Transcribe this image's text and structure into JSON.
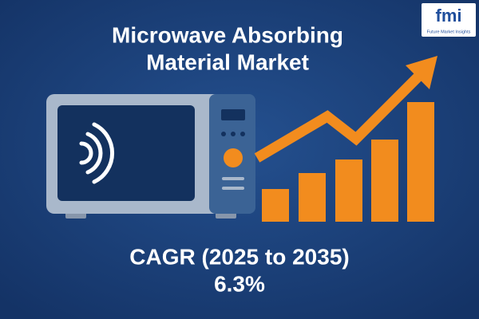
{
  "header": {
    "title_lines": [
      "Microwave Absorbing",
      "Material Market"
    ]
  },
  "highlight": {
    "label": "CAGR (2025 to 2035)",
    "value": "6.3%"
  },
  "logo": {
    "mark": "fmi",
    "name": "Future Market Insights"
  }
}
